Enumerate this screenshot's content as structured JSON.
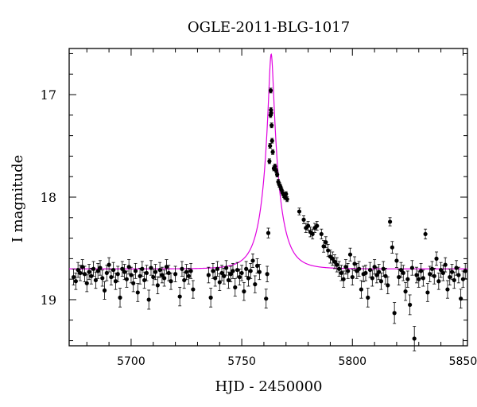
{
  "chart_data": {
    "type": "scatter",
    "title": "OGLE-2011-BLG-1017",
    "xlabel": "HJD - 2450000",
    "ylabel": "I magnitude",
    "xlim": [
      5672,
      5852
    ],
    "ylim": [
      19.45,
      16.55
    ],
    "y_inverted": true,
    "x_ticks": [
      5700,
      5750,
      5800,
      5850
    ],
    "y_ticks": [
      17,
      18,
      19
    ],
    "model_color": "#e000e0",
    "point_color": "#000000",
    "grid": false,
    "model": {
      "t0": 5763.3,
      "u0": 0.14,
      "tE": 7.5,
      "baseline_mag": 18.7,
      "blend_fraction": 0.95
    },
    "series": [
      {
        "points": [
          [
            5674,
            18.78
          ],
          [
            5675,
            18.82
          ],
          [
            5676,
            18.71
          ],
          [
            5677,
            18.74
          ],
          [
            5678,
            18.68
          ],
          [
            5679,
            18.75
          ],
          [
            5680,
            18.84
          ],
          [
            5681,
            18.73
          ],
          [
            5682,
            18.77
          ],
          [
            5683,
            18.7
          ],
          [
            5684,
            18.81
          ],
          [
            5685,
            18.72
          ],
          [
            5686,
            18.69
          ],
          [
            5687,
            18.79
          ],
          [
            5688,
            18.91
          ],
          [
            5689,
            18.74
          ],
          [
            5690,
            18.66
          ],
          [
            5691,
            18.78
          ],
          [
            5692,
            18.71
          ],
          [
            5693,
            18.82
          ],
          [
            5694,
            18.75
          ],
          [
            5695,
            18.98
          ],
          [
            5696,
            18.7
          ],
          [
            5697,
            18.73
          ],
          [
            5698,
            18.8
          ],
          [
            5699,
            18.68
          ],
          [
            5700,
            18.76
          ],
          [
            5701,
            18.84
          ],
          [
            5702,
            18.72
          ],
          [
            5703,
            18.93
          ],
          [
            5704,
            18.77
          ],
          [
            5705,
            18.7
          ],
          [
            5706,
            18.81
          ],
          [
            5707,
            18.74
          ],
          [
            5708,
            19.0
          ],
          [
            5709,
            18.69
          ],
          [
            5710,
            18.78
          ],
          [
            5711,
            18.73
          ],
          [
            5712,
            18.86
          ],
          [
            5713,
            18.71
          ],
          [
            5714,
            18.76
          ],
          [
            5715,
            18.79
          ],
          [
            5716,
            18.68
          ],
          [
            5717,
            18.74
          ],
          [
            5718,
            18.82
          ],
          [
            5720,
            18.75
          ],
          [
            5722,
            18.97
          ],
          [
            5723,
            18.7
          ],
          [
            5724,
            18.81
          ],
          [
            5725,
            18.73
          ],
          [
            5726,
            18.77
          ],
          [
            5727,
            18.72
          ],
          [
            5728,
            18.9
          ],
          [
            5735,
            18.76
          ],
          [
            5736,
            18.98
          ],
          [
            5737,
            18.72
          ],
          [
            5738,
            18.79
          ],
          [
            5739,
            18.7
          ],
          [
            5740,
            18.83
          ],
          [
            5741,
            18.74
          ],
          [
            5742,
            18.77
          ],
          [
            5743,
            18.69
          ],
          [
            5744,
            18.81
          ],
          [
            5745,
            18.75
          ],
          [
            5746,
            18.72
          ],
          [
            5747,
            18.88
          ],
          [
            5748,
            18.71
          ],
          [
            5749,
            18.78
          ],
          [
            5750,
            18.74
          ],
          [
            5751,
            18.92
          ],
          [
            5752,
            18.7
          ],
          [
            5753,
            18.79
          ],
          [
            5754,
            18.72
          ],
          [
            5755,
            18.62
          ],
          [
            5756,
            18.85
          ],
          [
            5757,
            18.67
          ],
          [
            5758,
            18.73
          ],
          [
            5761,
            18.99
          ],
          [
            5761.5,
            18.75
          ],
          [
            5762,
            18.35
          ],
          [
            5762.5,
            17.65
          ],
          [
            5762.8,
            17.5
          ],
          [
            5763,
            17.2
          ],
          [
            5763.1,
            16.96
          ],
          [
            5763.2,
            17.15
          ],
          [
            5763.3,
            17.18
          ],
          [
            5763.5,
            17.3
          ],
          [
            5763.7,
            17.45
          ],
          [
            5764,
            17.56
          ],
          [
            5764.5,
            17.72
          ],
          [
            5765,
            17.7
          ],
          [
            5765.5,
            17.74
          ],
          [
            5766,
            17.78
          ],
          [
            5766.5,
            17.85
          ],
          [
            5767,
            17.88
          ],
          [
            5767.5,
            17.9
          ],
          [
            5768,
            17.93
          ],
          [
            5768.5,
            17.96
          ],
          [
            5769,
            17.98
          ],
          [
            5769.5,
            18.0
          ],
          [
            5770,
            17.97
          ],
          [
            5770.5,
            18.02
          ],
          [
            5776,
            18.14
          ],
          [
            5778,
            18.22
          ],
          [
            5779,
            18.3
          ],
          [
            5780,
            18.28
          ],
          [
            5781,
            18.34
          ],
          [
            5782,
            18.36
          ],
          [
            5783,
            18.3
          ],
          [
            5784,
            18.28
          ],
          [
            5786,
            18.36
          ],
          [
            5787,
            18.48
          ],
          [
            5788,
            18.44
          ],
          [
            5789,
            18.52
          ],
          [
            5790,
            18.58
          ],
          [
            5791,
            18.6
          ],
          [
            5792,
            18.63
          ],
          [
            5793,
            18.66
          ],
          [
            5794,
            18.7
          ],
          [
            5795,
            18.74
          ],
          [
            5796,
            18.8
          ],
          [
            5797,
            18.68
          ],
          [
            5798,
            18.72
          ],
          [
            5799,
            18.56
          ],
          [
            5800,
            18.78
          ],
          [
            5801,
            18.65
          ],
          [
            5802,
            18.72
          ],
          [
            5803,
            18.7
          ],
          [
            5804,
            18.9
          ],
          [
            5805,
            18.75
          ],
          [
            5806,
            18.74
          ],
          [
            5807,
            18.98
          ],
          [
            5808,
            18.71
          ],
          [
            5809,
            18.79
          ],
          [
            5810,
            18.68
          ],
          [
            5811,
            18.76
          ],
          [
            5812,
            18.73
          ],
          [
            5813,
            18.82
          ],
          [
            5814,
            18.7
          ],
          [
            5815,
            18.77
          ],
          [
            5816,
            18.86
          ],
          [
            5817,
            18.24
          ],
          [
            5818,
            18.49
          ],
          [
            5819,
            19.13
          ],
          [
            5820,
            18.62
          ],
          [
            5821,
            18.78
          ],
          [
            5822,
            18.71
          ],
          [
            5823,
            18.74
          ],
          [
            5824,
            18.92
          ],
          [
            5825,
            18.8
          ],
          [
            5826,
            19.05
          ],
          [
            5827,
            18.69
          ],
          [
            5828,
            19.38
          ],
          [
            5829,
            18.76
          ],
          [
            5830,
            18.8
          ],
          [
            5831,
            18.72
          ],
          [
            5832,
            18.79
          ],
          [
            5833,
            18.36
          ],
          [
            5834,
            18.93
          ],
          [
            5835,
            18.75
          ],
          [
            5836,
            18.7
          ],
          [
            5837,
            18.77
          ],
          [
            5838,
            18.6
          ],
          [
            5839,
            18.82
          ],
          [
            5840,
            18.71
          ],
          [
            5841,
            18.74
          ],
          [
            5842,
            18.66
          ],
          [
            5843,
            18.9
          ],
          [
            5844,
            18.78
          ],
          [
            5845,
            18.73
          ],
          [
            5846,
            18.81
          ],
          [
            5847,
            18.69
          ],
          [
            5848,
            18.76
          ],
          [
            5849,
            18.99
          ],
          [
            5850,
            18.8
          ],
          [
            5851,
            18.72
          ]
        ]
      }
    ]
  }
}
